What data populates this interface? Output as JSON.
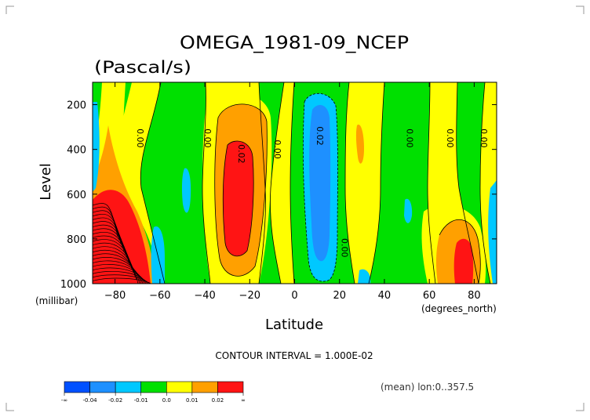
{
  "chart_data": {
    "type": "heatmap",
    "title": "OMEGA_1981-09_NCEP",
    "subtitle": "(Pascal/s)",
    "xlabel": "Latitude",
    "ylabel": "Level",
    "x_unit": "(degrees_north)",
    "y_unit": "(millibar)",
    "xlim": [
      -90,
      90
    ],
    "ylim": [
      1000,
      100
    ],
    "x_ticks": [
      -80,
      -60,
      -40,
      -20,
      0,
      20,
      40,
      60,
      80
    ],
    "y_ticks": [
      200,
      400,
      600,
      800,
      1000
    ],
    "contour_interval_text": "CONTOUR INTERVAL = 1.000E-02",
    "mean_text": "(mean) lon:0..357.5",
    "contour_labels": [
      {
        "text": "0.00",
        "x": -70,
        "y": 350
      },
      {
        "text": "0.00",
        "x": -40,
        "y": 350
      },
      {
        "text": "0.02",
        "x": -25,
        "y": 420
      },
      {
        "text": "0.00",
        "x": -9,
        "y": 400
      },
      {
        "text": "0.02",
        "x": 10,
        "y": 340
      },
      {
        "text": "0.00",
        "x": 21,
        "y": 840
      },
      {
        "text": "0.00",
        "x": 50,
        "y": 350
      },
      {
        "text": "0.00",
        "x": 68,
        "y": 350
      },
      {
        "text": "0.00",
        "x": 83,
        "y": 350
      }
    ],
    "colorbar": {
      "colors": [
        "#0050ff",
        "#1e90ff",
        "#00c8ff",
        "#00e000",
        "#ffff00",
        "#ffa000",
        "#ff1414"
      ],
      "labels": [
        "-∞",
        "-0.04",
        "-0.02",
        "-0.01",
        "0.0",
        "0.01",
        "0.02",
        "∞"
      ]
    }
  }
}
